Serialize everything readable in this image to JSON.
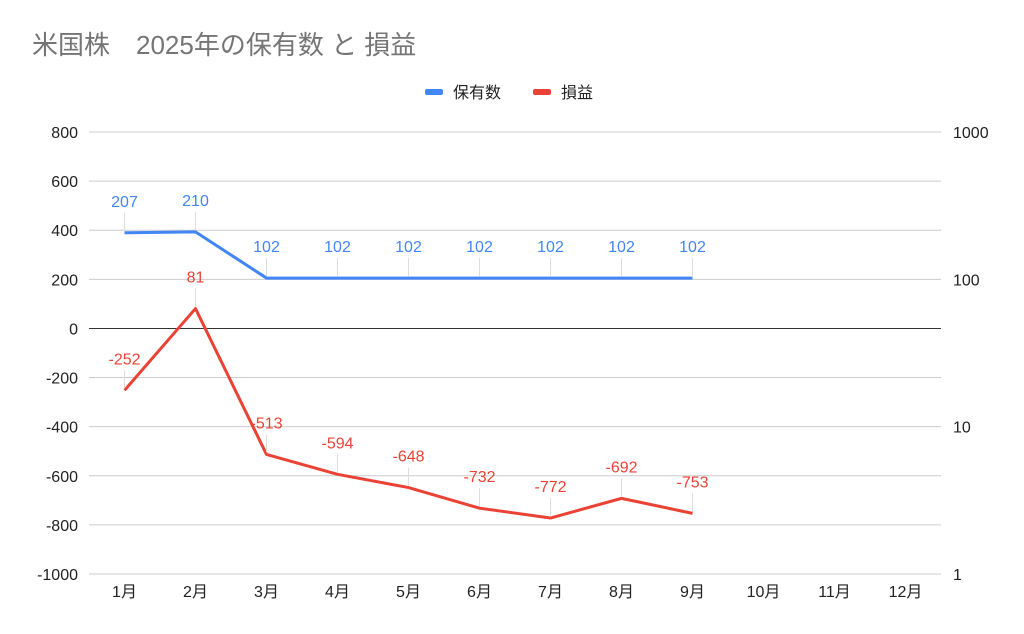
{
  "chart_data": {
    "type": "line",
    "title": "米国株　2025年の保有数 と 損益",
    "categories": [
      "1月",
      "2月",
      "3月",
      "4月",
      "5月",
      "6月",
      "7月",
      "8月",
      "9月",
      "10月",
      "11月",
      "12月"
    ],
    "series": [
      {
        "name": "保有数",
        "axis": "right",
        "scale": "log",
        "color": "#4285f4",
        "values": [
          207,
          210,
          102,
          102,
          102,
          102,
          102,
          102,
          102,
          null,
          null,
          null
        ]
      },
      {
        "name": "損益",
        "axis": "left",
        "scale": "linear",
        "color": "#ea4335",
        "values": [
          -252,
          81,
          -513,
          -594,
          -648,
          -732,
          -772,
          -692,
          -753,
          null,
          null,
          null
        ]
      }
    ],
    "left_axis": {
      "ylim": [
        -1000,
        800
      ],
      "ticks": [
        "800",
        "600",
        "400",
        "200",
        "0",
        "-200",
        "-400",
        "-600",
        "-800",
        "-1000"
      ],
      "tick_values": [
        800,
        600,
        400,
        200,
        0,
        -200,
        -400,
        -600,
        -800,
        -1000
      ]
    },
    "right_axis": {
      "ylim": [
        1,
        1000
      ],
      "scale": "log",
      "ticks": [
        "1000",
        "100",
        "10",
        "1"
      ],
      "tick_values": [
        1000,
        100,
        10,
        1
      ]
    },
    "legend_position": "top-center",
    "grid": true,
    "data_labels": true
  }
}
